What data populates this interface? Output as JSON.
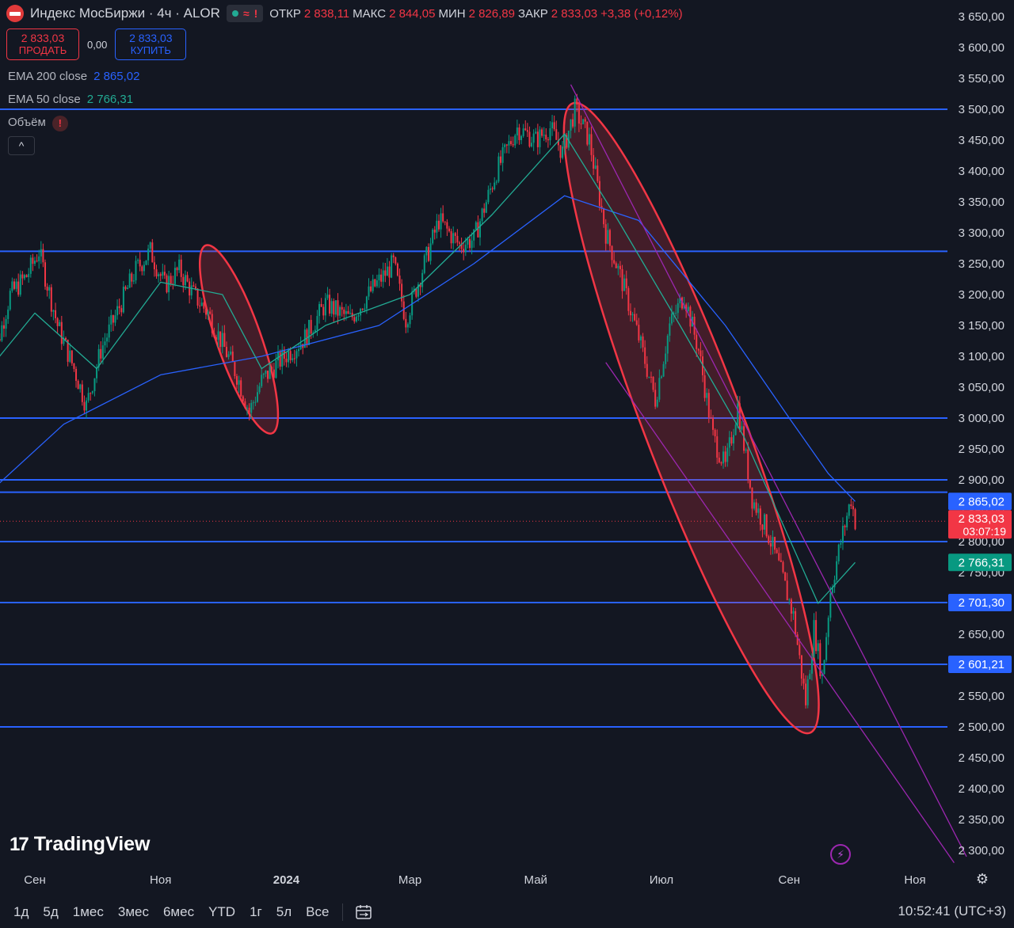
{
  "header": {
    "symbol": "Индекс МосБиржи · 4ч · ALOR",
    "status_icons": [
      "market-open-dot",
      "delayed-tilde-icon",
      "warning-icon"
    ],
    "ohlc": {
      "open_label": "ОТКР",
      "open": "2 838,11",
      "high_label": "МАКС",
      "high": "2 844,05",
      "low_label": "МИН",
      "low": "2 826,89",
      "close_label": "ЗАКР",
      "close": "2 833,03",
      "change": "+3,38 (+0,12%)"
    }
  },
  "trade": {
    "sell_price": "2 833,03",
    "sell_label": "ПРОДАТЬ",
    "spread": "0,00",
    "buy_price": "2 833,03",
    "buy_label": "КУПИТЬ"
  },
  "indicators": {
    "ema200": {
      "label": "EMA 200 close",
      "value": "2 865,02"
    },
    "ema50": {
      "label": "EMA 50 close",
      "value": "2 766,31"
    },
    "volume": {
      "label": "Объём",
      "warning": "!"
    }
  },
  "collapse_glyph": "^",
  "branding": {
    "logo_text": "TradingView"
  },
  "chart_data": {
    "type": "candlestick",
    "symbol": "Индекс МосБиржи",
    "interval": "4ч",
    "ylim": [
      2280,
      3670
    ],
    "y_ticks": [
      "3 650,00",
      "3 600,00",
      "3 550,00",
      "3 500,00",
      "3 450,00",
      "3 400,00",
      "3 350,00",
      "3 300,00",
      "3 250,00",
      "3 200,00",
      "3 150,00",
      "3 100,00",
      "3 050,00",
      "3 000,00",
      "2 950,00",
      "2 900,00",
      "2 850,00",
      "2 800,00",
      "2 750,00",
      "2 700,00",
      "2 650,00",
      "2 600,00",
      "2 550,00",
      "2 500,00",
      "2 450,00",
      "2 400,00",
      "2 350,00",
      "2 300,00"
    ],
    "y_tick_values": [
      3650,
      3600,
      3550,
      3500,
      3450,
      3400,
      3350,
      3300,
      3250,
      3200,
      3150,
      3100,
      3050,
      3000,
      2950,
      2900,
      2850,
      2800,
      2750,
      2700,
      2650,
      2600,
      2550,
      2500,
      2450,
      2400,
      2350,
      2300
    ],
    "x_ticks": [
      "Сен",
      "Ноя",
      "2024",
      "Мар",
      "Май",
      "Июл",
      "Сен",
      "Ноя"
    ],
    "x_tick_dates": [
      "2023-09-01",
      "2023-11-01",
      "2024-01-01",
      "2024-03-01",
      "2024-05-01",
      "2024-07-01",
      "2024-09-01",
      "2024-11-01"
    ],
    "x_range": [
      "2023-08-10",
      "2024-11-24"
    ],
    "price_path": [
      {
        "date": "2023-08-10",
        "close": 3070
      },
      {
        "date": "2023-08-20",
        "close": 3200
      },
      {
        "date": "2023-08-28",
        "close": 3230
      },
      {
        "date": "2023-09-03",
        "close": 3270
      },
      {
        "date": "2023-09-12",
        "close": 3150
      },
      {
        "date": "2023-09-20",
        "close": 3080
      },
      {
        "date": "2023-09-26",
        "close": 3020
      },
      {
        "date": "2023-10-03",
        "close": 3110
      },
      {
        "date": "2023-10-12",
        "close": 3180
      },
      {
        "date": "2023-10-20",
        "close": 3240
      },
      {
        "date": "2023-10-27",
        "close": 3270
      },
      {
        "date": "2023-11-03",
        "close": 3215
      },
      {
        "date": "2023-11-10",
        "close": 3240
      },
      {
        "date": "2023-11-17",
        "close": 3200
      },
      {
        "date": "2023-11-24",
        "close": 3170
      },
      {
        "date": "2023-12-01",
        "close": 3120
      },
      {
        "date": "2023-12-08",
        "close": 3070
      },
      {
        "date": "2023-12-14",
        "close": 3010
      },
      {
        "date": "2023-12-20",
        "close": 3060
      },
      {
        "date": "2023-12-28",
        "close": 3090
      },
      {
        "date": "2024-01-10",
        "close": 3130
      },
      {
        "date": "2024-01-20",
        "close": 3185
      },
      {
        "date": "2024-02-01",
        "close": 3160
      },
      {
        "date": "2024-02-12",
        "close": 3210
      },
      {
        "date": "2024-02-22",
        "close": 3250
      },
      {
        "date": "2024-02-28",
        "close": 3160
      },
      {
        "date": "2024-03-08",
        "close": 3250
      },
      {
        "date": "2024-03-15",
        "close": 3320
      },
      {
        "date": "2024-03-25",
        "close": 3280
      },
      {
        "date": "2024-04-01",
        "close": 3290
      },
      {
        "date": "2024-04-12",
        "close": 3400
      },
      {
        "date": "2024-04-22",
        "close": 3470
      },
      {
        "date": "2024-05-01",
        "close": 3450
      },
      {
        "date": "2024-05-08",
        "close": 3470
      },
      {
        "date": "2024-05-14",
        "close": 3430
      },
      {
        "date": "2024-05-20",
        "close": 3500
      },
      {
        "date": "2024-05-27",
        "close": 3450
      },
      {
        "date": "2024-06-04",
        "close": 3300
      },
      {
        "date": "2024-06-12",
        "close": 3220
      },
      {
        "date": "2024-06-20",
        "close": 3130
      },
      {
        "date": "2024-06-28",
        "close": 3030
      },
      {
        "date": "2024-07-05",
        "close": 3150
      },
      {
        "date": "2024-07-12",
        "close": 3200
      },
      {
        "date": "2024-07-19",
        "close": 3110
      },
      {
        "date": "2024-07-26",
        "close": 2970
      },
      {
        "date": "2024-08-01",
        "close": 2920
      },
      {
        "date": "2024-08-07",
        "close": 3020
      },
      {
        "date": "2024-08-14",
        "close": 2870
      },
      {
        "date": "2024-08-21",
        "close": 2820
      },
      {
        "date": "2024-08-28",
        "close": 2750
      },
      {
        "date": "2024-09-03",
        "close": 2680
      },
      {
        "date": "2024-09-09",
        "close": 2540
      },
      {
        "date": "2024-09-13",
        "close": 2660
      },
      {
        "date": "2024-09-17",
        "close": 2580
      },
      {
        "date": "2024-09-21",
        "close": 2720
      },
      {
        "date": "2024-09-26",
        "close": 2800
      },
      {
        "date": "2024-10-01",
        "close": 2870
      },
      {
        "date": "2024-10-03",
        "close": 2833.03
      }
    ],
    "series": [
      {
        "name": "EMA 200 close",
        "color": "#2962ff",
        "last": 2865.02,
        "points": [
          [
            "2023-08-10",
            2880
          ],
          [
            "2023-09-15",
            2990
          ],
          [
            "2023-11-01",
            3070
          ],
          [
            "2023-12-20",
            3100
          ],
          [
            "2024-02-15",
            3150
          ],
          [
            "2024-04-01",
            3250
          ],
          [
            "2024-05-15",
            3360
          ],
          [
            "2024-06-20",
            3320
          ],
          [
            "2024-08-01",
            3150
          ],
          [
            "2024-09-01",
            3000
          ],
          [
            "2024-09-20",
            2910
          ],
          [
            "2024-10-03",
            2865.02
          ]
        ]
      },
      {
        "name": "EMA 50 close",
        "color": "#22ab94",
        "last": 2766.31,
        "points": [
          [
            "2023-08-10",
            3080
          ],
          [
            "2023-09-01",
            3170
          ],
          [
            "2023-10-01",
            3080
          ],
          [
            "2023-11-01",
            3220
          ],
          [
            "2023-12-01",
            3200
          ],
          [
            "2023-12-20",
            3080
          ],
          [
            "2024-01-20",
            3150
          ],
          [
            "2024-03-01",
            3200
          ],
          [
            "2024-04-10",
            3330
          ],
          [
            "2024-05-15",
            3460
          ],
          [
            "2024-06-10",
            3320
          ],
          [
            "2024-07-10",
            3150
          ],
          [
            "2024-08-10",
            2970
          ],
          [
            "2024-09-15",
            2700
          ],
          [
            "2024-10-03",
            2766.31
          ]
        ]
      }
    ],
    "horizontal_levels": [
      3500,
      3270,
      3000,
      2900,
      2880,
      2800,
      2701.3,
      2601.21,
      2500
    ],
    "price_badges": [
      {
        "text": "2 865,02",
        "value": 2865.02,
        "color": "#2962ff"
      },
      {
        "text": "2 833,03",
        "sub": "03:07:19",
        "value": 2833.03,
        "color": "#f23645"
      },
      {
        "text": "2 766,31",
        "value": 2766.31,
        "color": "#089981"
      },
      {
        "text": "2 701,30",
        "value": 2701.3,
        "color": "#2962ff"
      },
      {
        "text": "2 601,21",
        "value": 2601.21,
        "color": "#2962ff"
      }
    ],
    "ellipses": [
      {
        "from": [
          "2023-11-24",
          3270
        ],
        "to": [
          "2023-12-24",
          2985
        ]
      },
      {
        "from": [
          "2024-05-20",
          3500
        ],
        "to": [
          "2024-09-10",
          2500
        ]
      }
    ],
    "trendlines": [
      {
        "from": [
          "2024-05-18",
          3540
        ],
        "to": [
          "2024-11-26",
          2290
        ]
      },
      {
        "from": [
          "2024-06-04",
          3090
        ],
        "to": [
          "2024-11-20",
          2280
        ]
      }
    ],
    "colors": {
      "up": "#089981",
      "down": "#f23645",
      "level": "#2962ff",
      "ellipse": "#f23645",
      "trend": "#9c27b0"
    }
  },
  "bottom": {
    "ranges": [
      "1д",
      "5д",
      "1мес",
      "3мес",
      "6мес",
      "YTD",
      "1г",
      "5л",
      "Все"
    ],
    "time": "10:52:41 (UTC+3)"
  }
}
